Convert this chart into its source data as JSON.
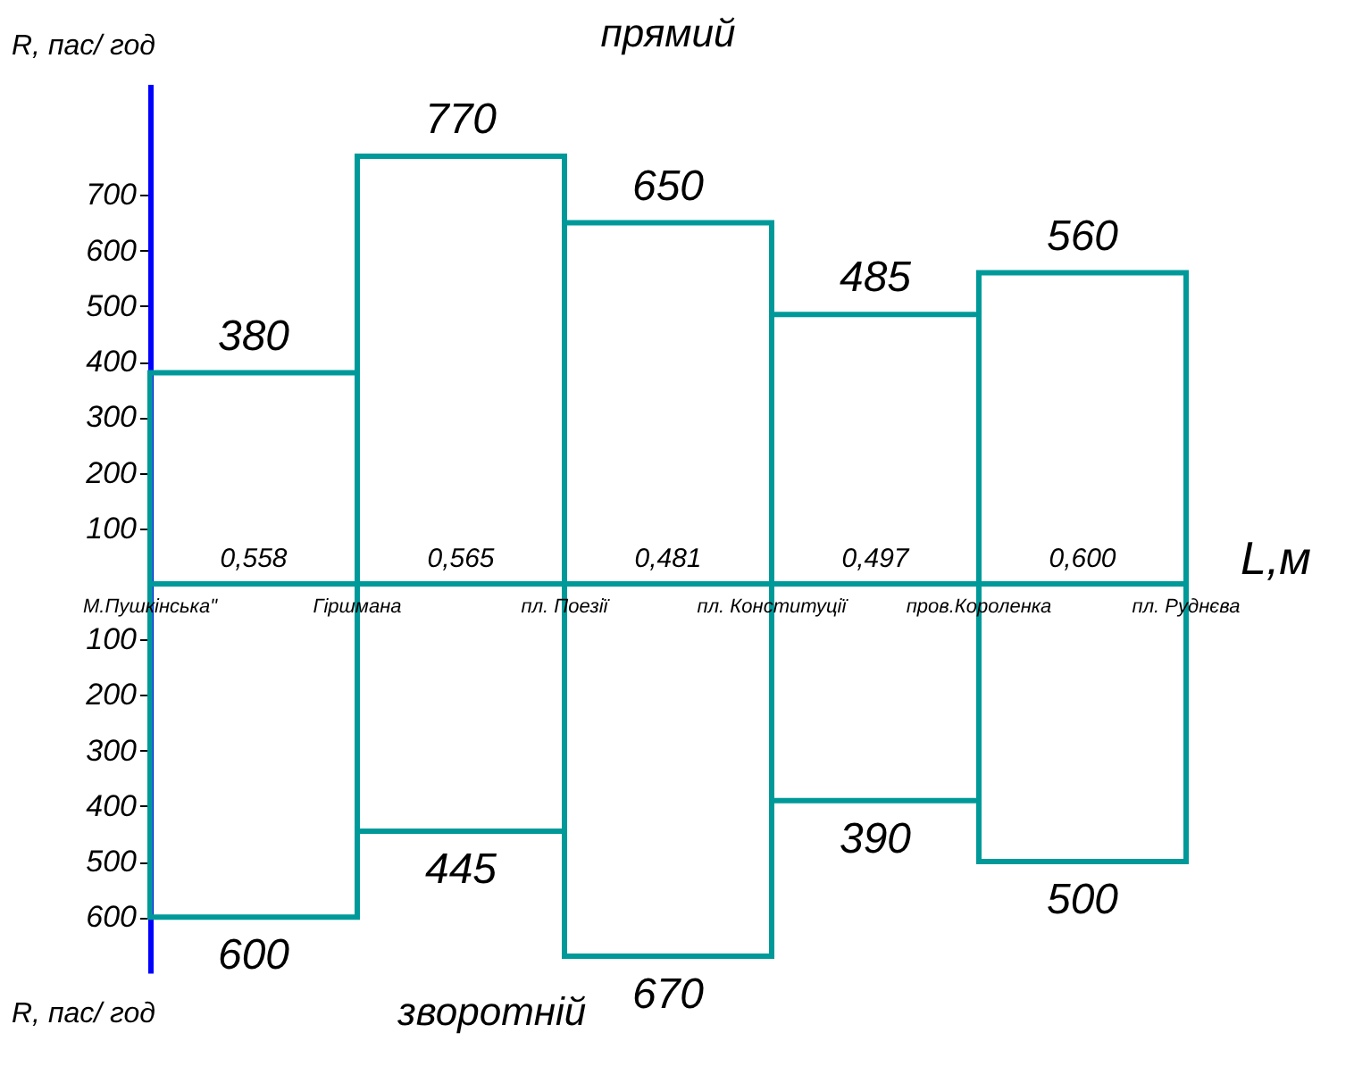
{
  "chart_data": [
    {
      "type": "bar",
      "xlabel": "L,м",
      "ylabel": "R, пас/ год",
      "categories": [
        "0,558",
        "0,565",
        "0,481",
        "0,497",
        "0,600"
      ],
      "series": [
        {
          "name": "прямий",
          "color": "#009999",
          "values": [
            380,
            770,
            650,
            485,
            560
          ]
        }
      ],
      "ylim": [
        0,
        900
      ],
      "yticks": [
        100,
        200,
        300,
        400,
        500,
        600,
        700
      ],
      "data_labels": true
    },
    {
      "type": "bar",
      "ylabel": "R, пас/ год",
      "categories": [
        "0,558",
        "0,565",
        "0,481",
        "0,497",
        "0,600"
      ],
      "series": [
        {
          "name": "зворотній",
          "color": "#009999",
          "values": [
            600,
            445,
            670,
            390,
            500
          ]
        }
      ],
      "ylim": [
        700,
        0
      ],
      "yticks": [
        100,
        200,
        300,
        400,
        500,
        600
      ],
      "data_labels": true,
      "tick_labels": "y",
      "annotations": [
        "М.Пушкінська\"",
        "Гіршмана",
        "пл. Поезії",
        "пл. Конституції",
        "пров.Короленка",
        "пл. Руднєва"
      ]
    }
  ]
}
